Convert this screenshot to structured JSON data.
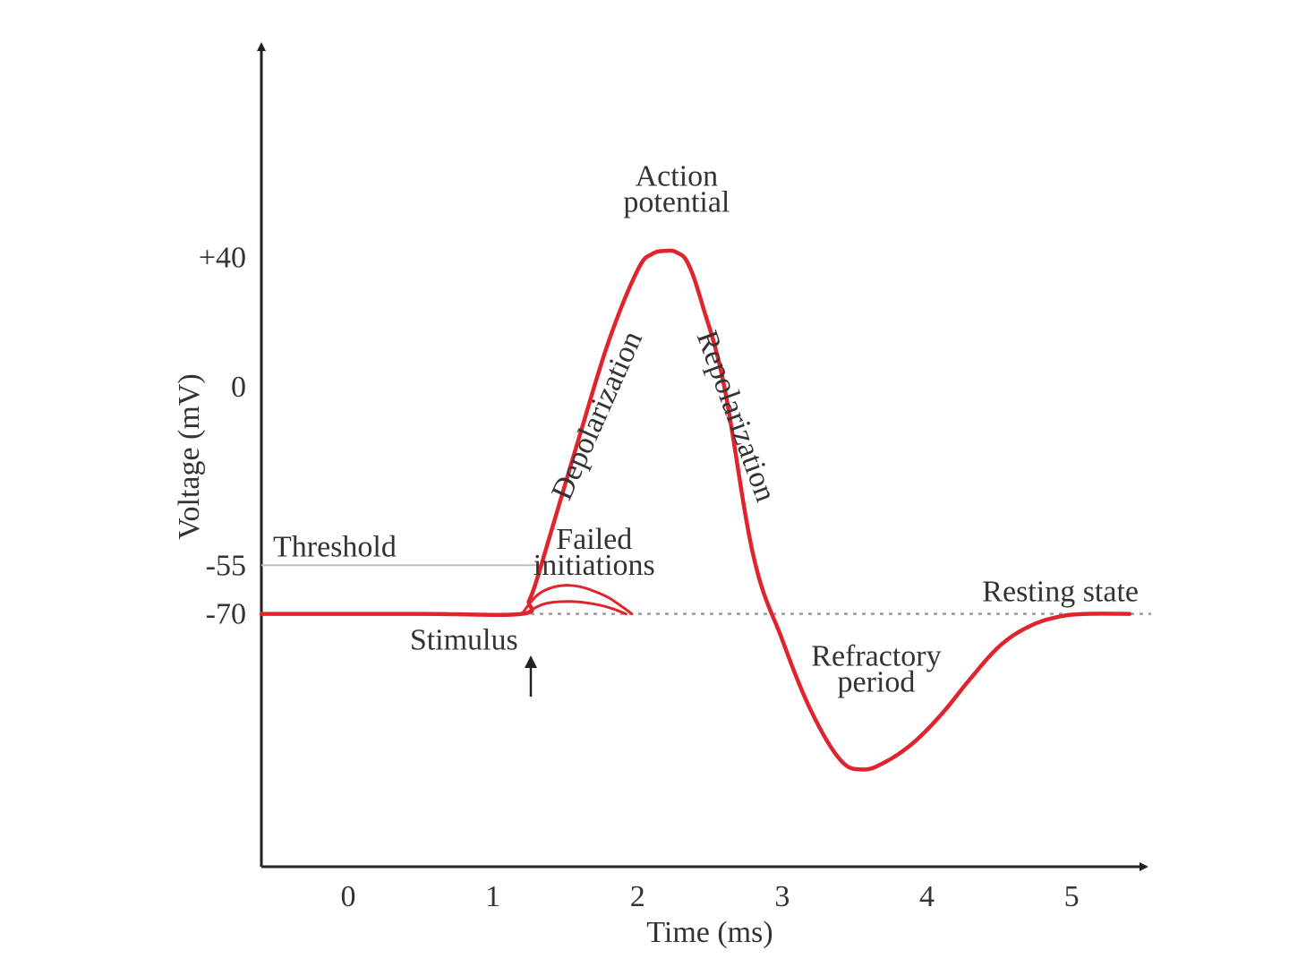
{
  "chart_data": {
    "type": "line",
    "xlabel": "Time (ms)",
    "ylabel": "Voltage (mV)",
    "xlim": [
      -0.6,
      5.5
    ],
    "ylim": [
      -148,
      105
    ],
    "x_ticks": [
      "0",
      "1",
      "2",
      "3",
      "4",
      "5"
    ],
    "y_ticks": [
      {
        "value": 40,
        "label": "+40"
      },
      {
        "value": 0,
        "label": "0"
      },
      {
        "value": -55,
        "label": "-55"
      },
      {
        "value": -70,
        "label": "-70"
      }
    ],
    "grid": false,
    "legend": "none",
    "line_color": "#e0242c",
    "threshold_line": {
      "value": -55,
      "label": "Threshold",
      "x_end": 1.35
    },
    "resting_line": {
      "value": -70,
      "label": "Resting state"
    },
    "series": [
      {
        "x": [
          -0.6,
          0.5,
          1.2,
          1.25,
          1.3,
          1.4,
          1.6,
          1.8,
          2.0,
          2.1,
          2.2,
          2.27,
          2.35,
          2.45,
          2.6,
          2.8,
          3.0,
          3.2,
          3.4,
          3.55,
          3.7,
          3.9,
          4.1,
          4.3,
          4.5,
          4.7,
          4.9,
          5.1,
          5.4
        ],
        "y": [
          -70,
          -70,
          -70,
          -66,
          -60,
          -45,
          -15,
          14,
          36,
          41,
          42,
          41.5,
          38,
          25,
          0,
          -52,
          -78,
          -100,
          -115,
          -118,
          -116,
          -110,
          -101,
          -90,
          -80,
          -74,
          -71,
          -70,
          -70
        ]
      },
      {
        "x": [
          1.2,
          1.3,
          1.4,
          1.5,
          1.6,
          1.7,
          1.8,
          1.9,
          1.96
        ],
        "y": [
          -70,
          -64.5,
          -62,
          -61.2,
          -61.6,
          -63,
          -65,
          -68,
          -70
        ]
      },
      {
        "x": [
          1.22,
          1.35,
          1.5,
          1.65,
          1.8,
          1.92
        ],
        "y": [
          -70,
          -67,
          -66.2,
          -66.6,
          -68,
          -70
        ]
      }
    ],
    "annotations": [
      {
        "text": "Action",
        "x": 2.27,
        "y": 62
      },
      {
        "text": "potential",
        "x": 2.27,
        "y": 54
      },
      {
        "text": "Depolarization",
        "x": 1.78,
        "y": -10,
        "rotate": -66
      },
      {
        "text": "Repolarization",
        "x": 2.62,
        "y": -10,
        "rotate": 70
      },
      {
        "text": "Failed",
        "x": 1.7,
        "y": -50
      },
      {
        "text": "initiations",
        "x": 1.7,
        "y": -58
      },
      {
        "text": "Refractory",
        "x": 3.65,
        "y": -86
      },
      {
        "text": "period",
        "x": 3.65,
        "y": -94
      },
      {
        "text": "Stimulus",
        "x": 0.8,
        "y": -81
      }
    ]
  }
}
